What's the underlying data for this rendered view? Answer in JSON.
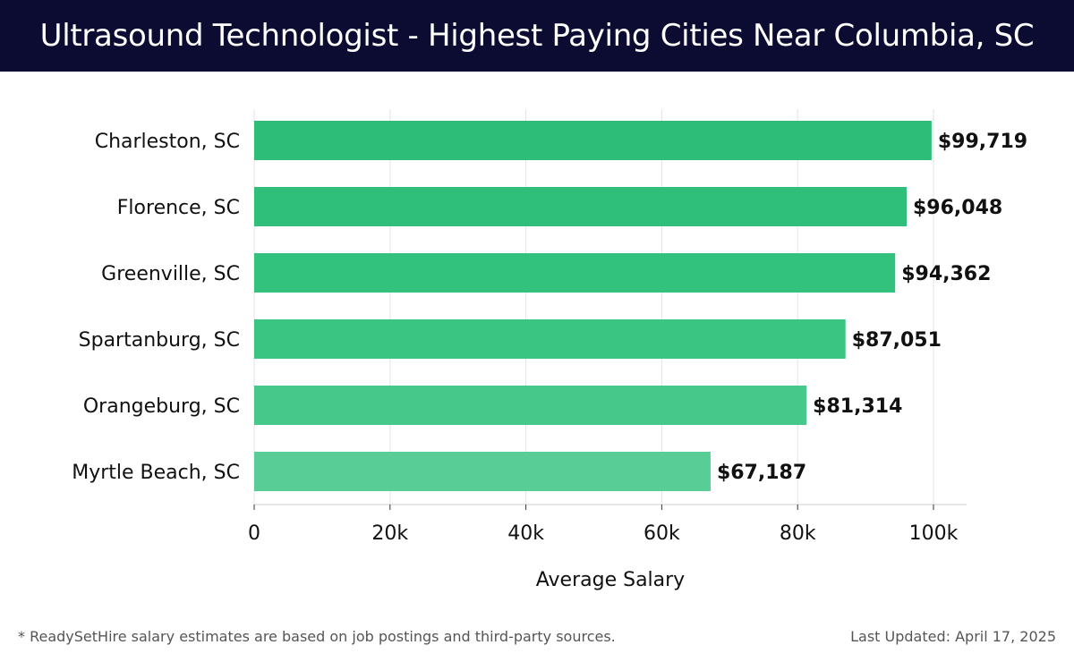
{
  "header": {
    "title": "Ultrasound Technologist - Highest Paying Cities Near Columbia, SC"
  },
  "footer": {
    "note": "* ReadySetHire salary estimates are based on job postings and third-party sources.",
    "updated": "Last Updated: April 17, 2025"
  },
  "colors": {
    "header_bg": "#0c0c33",
    "bars": [
      "#2dbd78",
      "#2fbf7a",
      "#33c27d",
      "#3bc583",
      "#45c88a",
      "#58cd96"
    ]
  },
  "chart_data": {
    "type": "bar",
    "orientation": "horizontal",
    "title": "Ultrasound Technologist - Highest Paying Cities Near Columbia, SC",
    "xlabel": "Average Salary",
    "ylabel": "",
    "categories": [
      "Charleston, SC",
      "Florence, SC",
      "Greenville, SC",
      "Spartanburg, SC",
      "Orangeburg, SC",
      "Myrtle Beach, SC"
    ],
    "values": [
      99719,
      96048,
      94362,
      87051,
      81314,
      67187
    ],
    "value_labels": [
      "$99,719",
      "$96,048",
      "$94,362",
      "$87,051",
      "$81,314",
      "$67,187"
    ],
    "xlim": [
      0,
      105000
    ],
    "xticks": [
      0,
      20000,
      40000,
      60000,
      80000,
      100000
    ],
    "xtick_labels": [
      "0",
      "20k",
      "40k",
      "60k",
      "80k",
      "100k"
    ],
    "grid": true
  }
}
